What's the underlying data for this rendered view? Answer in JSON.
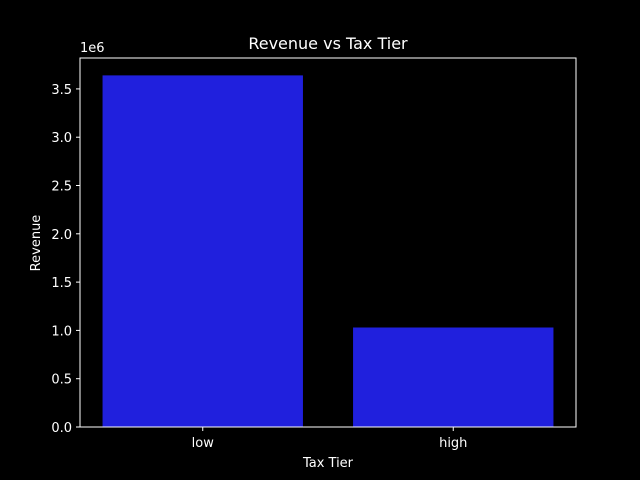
{
  "chart_data": {
    "type": "bar",
    "title": "Revenue vs Tax Tier",
    "xlabel": "Tax Tier",
    "ylabel": "Revenue",
    "y_offset_label": "1e6",
    "categories": [
      "low",
      "high"
    ],
    "values": [
      3640000,
      1030000
    ],
    "ylim": [
      0,
      3820000
    ],
    "yticks": [
      0,
      500000,
      1000000,
      1500000,
      2000000,
      2500000,
      3000000,
      3500000
    ],
    "ytick_labels": [
      "0.0",
      "0.5",
      "1.0",
      "1.5",
      "2.0",
      "2.5",
      "3.0",
      "3.5"
    ],
    "bar_color": "#2020dd",
    "axis_color": "#ffffff",
    "background": "#000000",
    "grid": false,
    "legend": "none"
  }
}
